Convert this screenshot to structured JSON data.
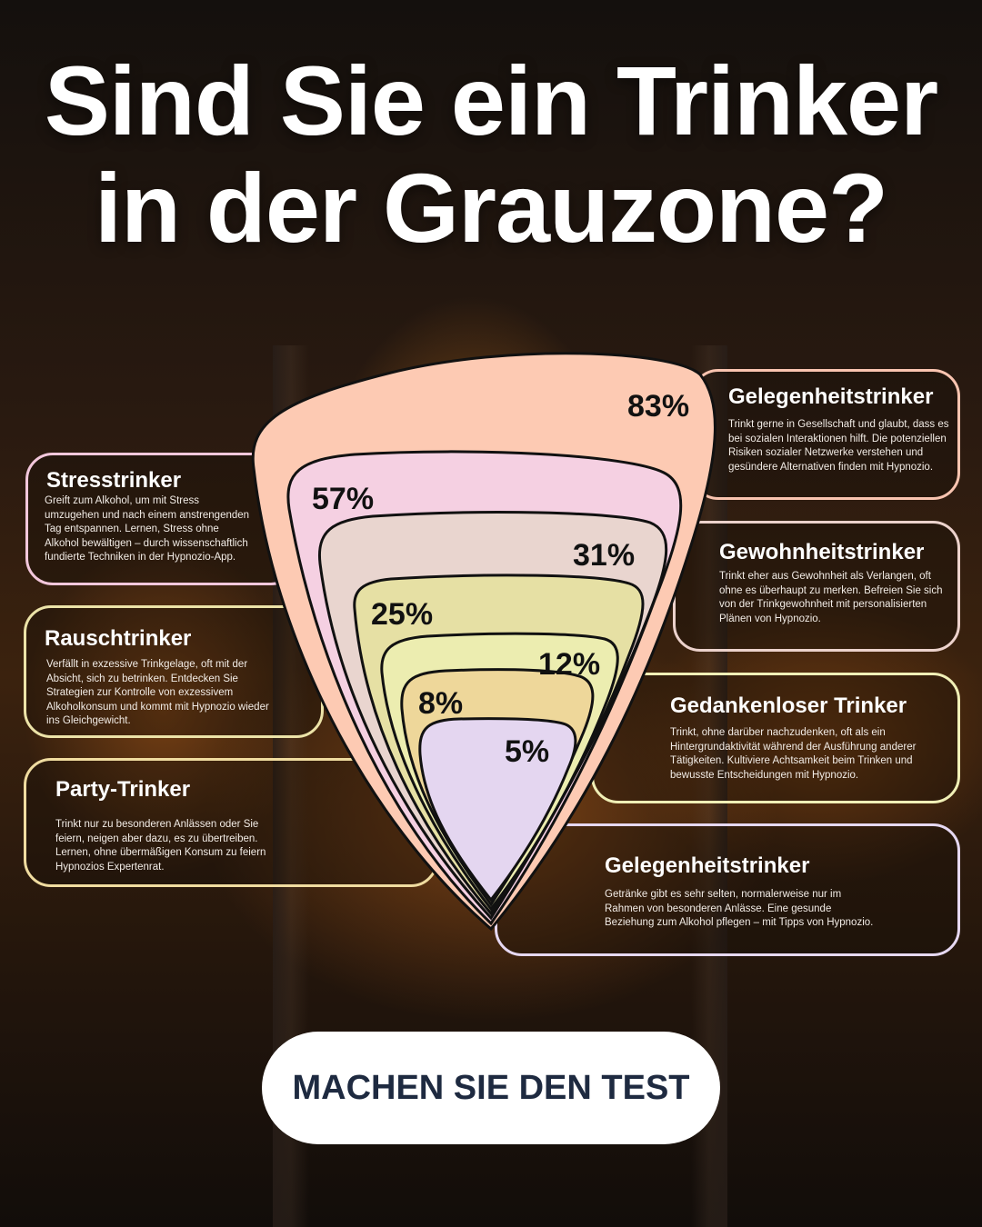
{
  "title": {
    "line1": "Sind Sie ein Trinker",
    "line2": "in der Grauzone?"
  },
  "funnel": {
    "levels": [
      {
        "percent": "83%",
        "color": "#fdcab3"
      },
      {
        "percent": "57%",
        "color": "#f5d0e2"
      },
      {
        "percent": "31%",
        "color": "#e9d5cf"
      },
      {
        "percent": "25%",
        "color": "#e6e0a4"
      },
      {
        "percent": "12%",
        "color": "#ecedb0"
      },
      {
        "percent": "8%",
        "color": "#eed79a"
      },
      {
        "percent": "5%",
        "color": "#e4d6f0"
      }
    ]
  },
  "cards": {
    "gelegenheit_top": {
      "title": "Gelegenheitstrinker",
      "text": "Trinkt gerne in Gesellschaft und glaubt, dass es bei sozialen Interaktionen hilft. Die potenziellen Risiken sozialer Netzwerke verstehen und gesündere Alternativen finden mit Hypnozio.",
      "border": "#f9c4b0"
    },
    "stress": {
      "title": "Stresstrinker",
      "text": "Greift zum Alkohol, um mit Stress umzugehen und nach einem anstrengenden Tag entspannen. Lernen, Stress ohne Alkohol bewältigen – durch wissenschaftlich fundierte Techniken in der Hypnozio-App.",
      "border": "#f3c7dc"
    },
    "gewohnheit": {
      "title": "Gewohnheitstrinker",
      "text": "Trinkt eher aus Gewohnheit als Verlangen, oft ohne es überhaupt zu merken. Befreien Sie sich von der Trinkgewohnheit mit personalisierten Plänen von Hypnozio.",
      "border": "#ecd2cc"
    },
    "rausch": {
      "title": "Rauschtrinker",
      "text": "Verfällt in exzessive Trinkgelage, oft mit der Absicht, sich zu betrinken. Entdecken Sie Strategien zur Kontrolle von exzessivem Alkoholkonsum und kommt mit Hypnozio wieder ins Gleichgewicht.",
      "border": "#ece3a8"
    },
    "gedankenlos": {
      "title": "Gedankenloser Trinker",
      "text": "Trinkt, ohne darüber nachzudenken, oft als ein Hintergrundaktivität während der Ausführung anderer Tätigkeiten. Kultiviere Achtsamkeit beim Trinken und bewusste Entscheidungen mit Hypnozio.",
      "border": "#f0efb6"
    },
    "party": {
      "title": "Party-Trinker",
      "text": "Trinkt nur zu besonderen Anlässen oder Sie feiern, neigen aber dazu, es zu übertreiben. Lernen, ohne übermäßigen Konsum zu feiern Hypnozios Expertenrat.",
      "border": "#f0dca0"
    },
    "gelegenheit_bottom": {
      "title": "Gelegenheitstrinker",
      "text": "Getränke gibt es sehr selten, normalerweise nur im Rahmen von besonderen Anlässe. Eine gesunde Beziehung zum Alkohol pflegen – mit Tipps von Hypnozio.",
      "border": "#e6d8f2"
    }
  },
  "cta": {
    "label": "MACHEN SIE DEN TEST"
  }
}
